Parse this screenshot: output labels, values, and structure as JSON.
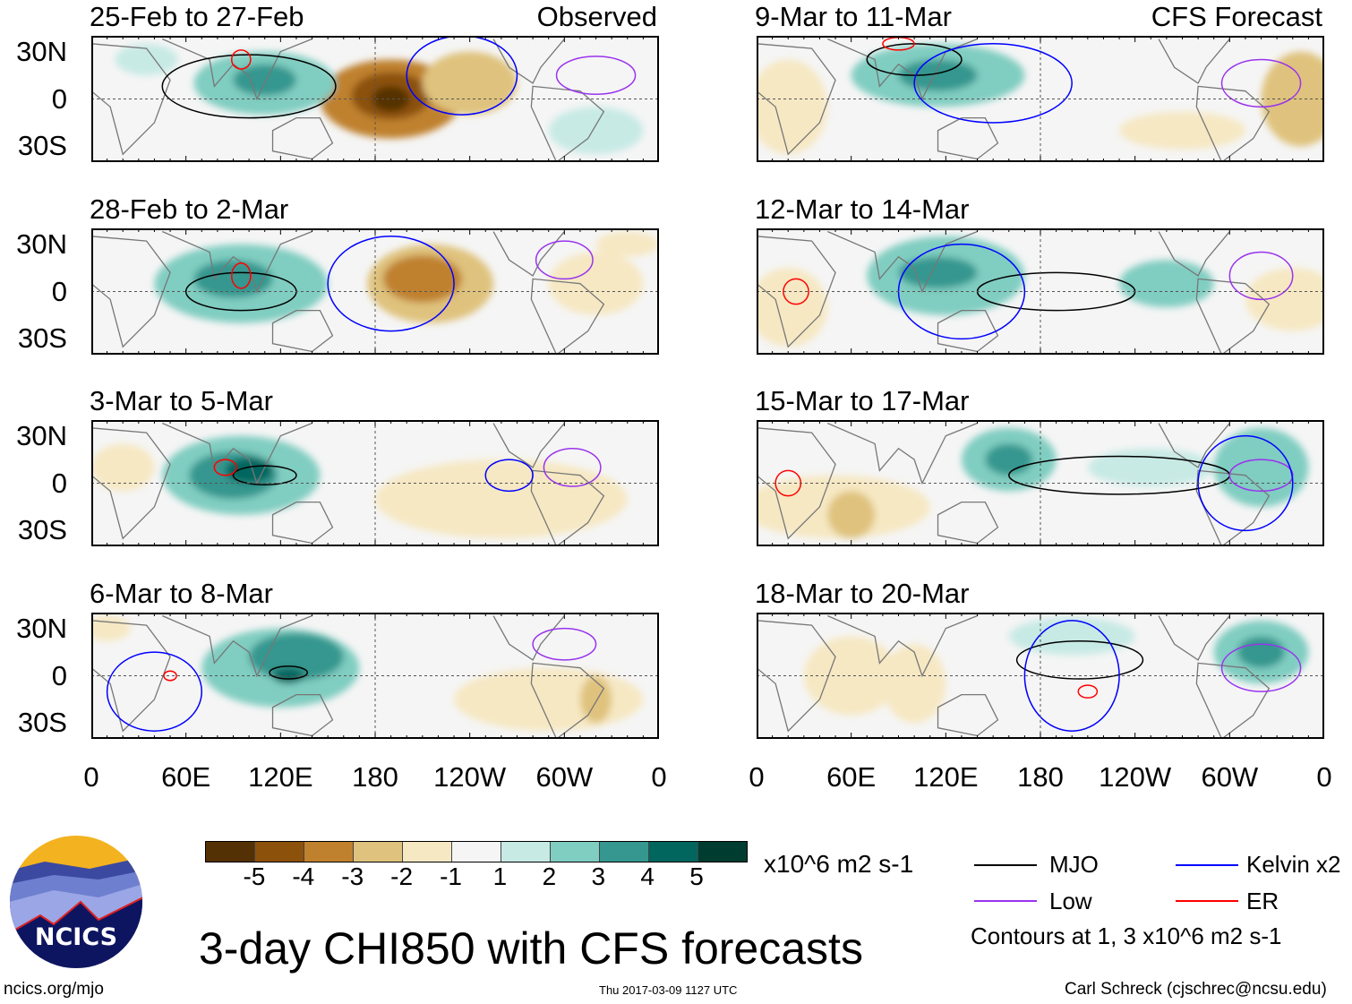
{
  "colorbar": {
    "colors": [
      "#543005",
      "#8c510a",
      "#bf812d",
      "#dfc27d",
      "#f6e8c3",
      "#f5f5f5",
      "#c7eae5",
      "#80cdc1",
      "#35978f",
      "#01665e",
      "#003c30"
    ],
    "labels": [
      "-5",
      "-4",
      "-3",
      "-2",
      "-1",
      "1",
      "2",
      "3",
      "4",
      "5"
    ],
    "units": "x10^6 m2 s-1"
  },
  "lat_labels": [
    "30N",
    "0",
    "30S"
  ],
  "lon_labels": [
    "0",
    "60E",
    "120E",
    "180",
    "120W",
    "60W",
    "0"
  ],
  "legend": {
    "mjo": {
      "label": "MJO",
      "color": "#000000"
    },
    "kelvin": {
      "label": "Kelvin x2",
      "color": "#0000ff"
    },
    "low": {
      "label": "Low",
      "color": "#9933ee"
    },
    "er": {
      "label": "ER",
      "color": "#ff0000"
    },
    "contours_note": "Contours at 1, 3 x10^6 m2 s-1"
  },
  "title": "3-day CHI850 with CFS forecasts",
  "logo_text": "NCICS",
  "site": "ncics.org/mjo",
  "timestamp": "Thu 2017-03-09 1127 UTC",
  "author": "Carl Schreck (cjschrec@ncsu.edu)",
  "columns": {
    "left_label": "Observed",
    "right_label": "CFS Forecast"
  },
  "chart_data": {
    "type": "heatmap",
    "variable": "3-day CHI850 anomaly",
    "units": "x10^6 m2 s-1",
    "lon_range": [
      0,
      360
    ],
    "lat_range": [
      -40,
      40
    ],
    "panels": [
      {
        "title": "25-Feb to 27-Feb",
        "blobs": [
          [
            190,
            0,
            45,
            25,
            -3
          ],
          [
            190,
            2,
            25,
            15,
            -4
          ],
          [
            190,
            0,
            12,
            8,
            -5
          ],
          [
            240,
            10,
            30,
            20,
            -2
          ],
          [
            110,
            10,
            45,
            20,
            2
          ],
          [
            110,
            12,
            20,
            10,
            3
          ],
          [
            35,
            25,
            20,
            10,
            1
          ],
          [
            320,
            -20,
            30,
            15,
            1
          ]
        ],
        "contours": [
          [
            100,
            8,
            55,
            20,
            "mjo"
          ],
          [
            235,
            15,
            35,
            25,
            "kelvin"
          ],
          [
            95,
            25,
            6,
            6,
            "er"
          ],
          [
            320,
            15,
            25,
            12,
            "low"
          ]
        ]
      },
      {
        "title": "28-Feb to 2-Mar",
        "blobs": [
          [
            95,
            5,
            55,
            25,
            2
          ],
          [
            90,
            8,
            25,
            12,
            3
          ],
          [
            215,
            5,
            40,
            25,
            -2
          ],
          [
            210,
            8,
            25,
            15,
            -3
          ],
          [
            320,
            5,
            30,
            20,
            -1
          ],
          [
            340,
            30,
            20,
            8,
            -1
          ]
        ],
        "contours": [
          [
            95,
            0,
            35,
            12,
            "mjo"
          ],
          [
            95,
            10,
            6,
            8,
            "er"
          ],
          [
            300,
            20,
            18,
            12,
            "low"
          ],
          [
            190,
            5,
            40,
            30,
            "kelvin"
          ]
        ]
      },
      {
        "title": "3-Mar to 5-Mar",
        "blobs": [
          [
            95,
            5,
            50,
            25,
            2
          ],
          [
            90,
            5,
            28,
            15,
            3
          ],
          [
            100,
            8,
            15,
            8,
            4
          ],
          [
            260,
            -10,
            80,
            25,
            -1
          ],
          [
            20,
            10,
            20,
            15,
            -1
          ]
        ],
        "contours": [
          [
            110,
            5,
            20,
            6,
            "mjo"
          ],
          [
            85,
            10,
            7,
            5,
            "er"
          ],
          [
            305,
            10,
            18,
            12,
            "low"
          ],
          [
            265,
            5,
            15,
            10,
            "kelvin"
          ]
        ]
      },
      {
        "title": "6-Mar to 8-Mar",
        "blobs": [
          [
            120,
            5,
            50,
            25,
            2
          ],
          [
            130,
            12,
            30,
            15,
            3
          ],
          [
            125,
            0,
            10,
            5,
            4
          ],
          [
            290,
            -15,
            60,
            20,
            -1
          ],
          [
            320,
            -15,
            10,
            15,
            -2
          ],
          [
            10,
            30,
            15,
            8,
            -1
          ]
        ],
        "contours": [
          [
            125,
            2,
            12,
            4,
            "mjo"
          ],
          [
            50,
            0,
            4,
            3,
            "er"
          ],
          [
            300,
            20,
            20,
            10,
            "low"
          ],
          [
            40,
            -10,
            30,
            25,
            "kelvin"
          ]
        ]
      },
      {
        "title": "9-Mar to 11-Mar",
        "blobs": [
          [
            115,
            15,
            55,
            20,
            2
          ],
          [
            115,
            15,
            25,
            10,
            3
          ],
          [
            20,
            -5,
            25,
            30,
            -1
          ],
          [
            345,
            0,
            25,
            30,
            -2
          ],
          [
            270,
            -20,
            40,
            12,
            -1
          ]
        ],
        "contours": [
          [
            100,
            25,
            30,
            10,
            "mjo"
          ],
          [
            90,
            35,
            10,
            4,
            "er"
          ],
          [
            320,
            10,
            25,
            15,
            "low"
          ],
          [
            150,
            10,
            50,
            25,
            "kelvin"
          ]
        ]
      },
      {
        "title": "12-Mar to 14-Mar",
        "blobs": [
          [
            120,
            10,
            50,
            25,
            2
          ],
          [
            115,
            12,
            25,
            10,
            3
          ],
          [
            20,
            -10,
            25,
            25,
            -1
          ],
          [
            340,
            -5,
            30,
            20,
            -1
          ],
          [
            260,
            5,
            30,
            15,
            2
          ]
        ],
        "contours": [
          [
            190,
            0,
            50,
            12,
            "mjo"
          ],
          [
            25,
            0,
            8,
            8,
            "er"
          ],
          [
            320,
            10,
            20,
            15,
            "low"
          ],
          [
            130,
            0,
            40,
            30,
            "kelvin"
          ]
        ]
      },
      {
        "title": "15-Mar to 17-Mar",
        "blobs": [
          [
            160,
            15,
            30,
            20,
            2
          ],
          [
            160,
            15,
            15,
            10,
            3
          ],
          [
            320,
            10,
            30,
            25,
            2
          ],
          [
            50,
            -15,
            60,
            20,
            -1
          ],
          [
            60,
            -20,
            15,
            15,
            -2
          ],
          [
            250,
            10,
            40,
            12,
            1
          ]
        ],
        "contours": [
          [
            230,
            5,
            70,
            12,
            "mjo"
          ],
          [
            20,
            0,
            8,
            8,
            "er"
          ],
          [
            320,
            5,
            20,
            10,
            "low"
          ],
          [
            310,
            0,
            30,
            30,
            "kelvin"
          ]
        ]
      },
      {
        "title": "18-Mar to 20-Mar",
        "blobs": [
          [
            320,
            15,
            30,
            20,
            2
          ],
          [
            320,
            15,
            15,
            10,
            3
          ],
          [
            60,
            0,
            30,
            25,
            -1
          ],
          [
            100,
            -5,
            20,
            25,
            -1
          ],
          [
            200,
            25,
            40,
            12,
            1
          ]
        ],
        "contours": [
          [
            205,
            10,
            40,
            12,
            "mjo"
          ],
          [
            210,
            -10,
            6,
            4,
            "er"
          ],
          [
            320,
            5,
            25,
            15,
            "low"
          ],
          [
            200,
            0,
            30,
            35,
            "kelvin"
          ]
        ]
      }
    ]
  }
}
